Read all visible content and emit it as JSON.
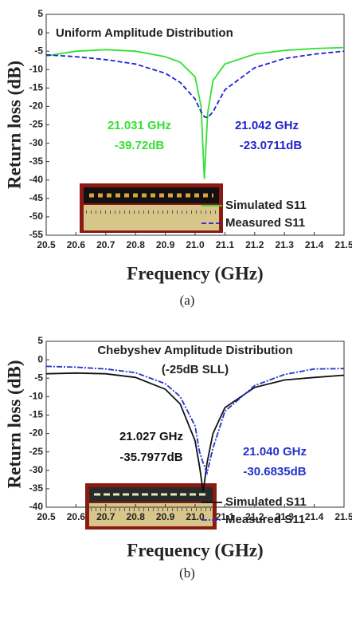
{
  "chart_data": [
    {
      "type": "line",
      "title": "Uniform Amplitude Distribution",
      "x_label": "Frequency (GHz)",
      "y_label": "Return loss (dB)",
      "caption": "(a)",
      "x": [
        20.5,
        20.6,
        20.7,
        20.8,
        20.9,
        20.95,
        21.0,
        21.02,
        21.031,
        21.042,
        21.06,
        21.1,
        21.2,
        21.3,
        21.4,
        21.5
      ],
      "series": [
        {
          "name": "Simulated S11",
          "color": "#33e033",
          "style": "solid",
          "values": [
            -6.3,
            -5,
            -4.6,
            -5,
            -6.5,
            -8,
            -12,
            -20,
            -39.72,
            -22,
            -13,
            -8.5,
            -5.8,
            -4.8,
            -4.3,
            -4
          ]
        },
        {
          "name": "Measured S11",
          "color": "#2222cc",
          "style": "dashed",
          "values": [
            -6,
            -6.5,
            -7.3,
            -8.5,
            -11,
            -13.5,
            -18,
            -21.5,
            -22.8,
            -23.0711,
            -21.5,
            -15.5,
            -9.5,
            -7,
            -5.8,
            -5
          ]
        }
      ],
      "annotations": [
        {
          "text": "21.031 GHz",
          "color": "#33e033"
        },
        {
          "text": "-39.72dB",
          "color": "#33e033"
        },
        {
          "text": "21.042 GHz",
          "color": "#2222cc"
        },
        {
          "text": "-23.0711dB",
          "color": "#2222cc"
        }
      ],
      "xlim": [
        20.5,
        21.5
      ],
      "xticks": [
        20.5,
        20.6,
        20.7,
        20.8,
        20.9,
        {
          "value": 21,
          "label": "21.0"
        },
        21.1,
        21.2,
        21.3,
        21.4,
        21.5
      ],
      "ylim": [
        -55,
        5
      ],
      "yticks": [
        -55,
        -50,
        -45,
        -40,
        -35,
        -30,
        -25,
        -20,
        -15,
        -10,
        -5,
        0,
        5
      ],
      "grid": false,
      "legend": "lower right"
    },
    {
      "type": "line",
      "title": "Chebyshev Amplitude Distribution",
      "subtitle": "(-25dB SLL)",
      "x_label": "Frequency (GHz)",
      "y_label": "Return loss (dB)",
      "caption": "(b)",
      "x": [
        20.5,
        20.6,
        20.7,
        20.8,
        20.9,
        20.95,
        21.0,
        21.015,
        21.027,
        21.04,
        21.06,
        21.1,
        21.2,
        21.3,
        21.4,
        21.5
      ],
      "series": [
        {
          "name": "Simulated S11",
          "color": "#111111",
          "style": "solid",
          "values": [
            -3.8,
            -3.6,
            -3.8,
            -4.8,
            -8,
            -12,
            -22,
            -29,
            -35.7977,
            -28,
            -20,
            -13,
            -7.5,
            -5.5,
            -4.8,
            -4.2
          ]
        },
        {
          "name": "Measured S11",
          "color": "#2233cc",
          "style": "dashdot",
          "values": [
            -1.8,
            -2,
            -2.5,
            -3.5,
            -6.5,
            -10,
            -18,
            -25,
            -28,
            -30.6835,
            -24,
            -14,
            -7,
            -4,
            -2.5,
            -2.4
          ]
        }
      ],
      "annotations": [
        {
          "text": "21.027 GHz",
          "color": "#111111"
        },
        {
          "text": "-35.7977dB",
          "color": "#111111"
        },
        {
          "text": "21.040 GHz",
          "color": "#2233cc"
        },
        {
          "text": "-30.6835dB",
          "color": "#2233cc"
        }
      ],
      "xlim": [
        20.5,
        21.5
      ],
      "xticks": [
        20.5,
        20.6,
        20.7,
        20.8,
        20.9,
        {
          "value": 21,
          "label": "21.0"
        },
        21.1,
        21.2,
        21.3,
        21.4,
        21.5
      ],
      "ylim": [
        -40,
        5
      ],
      "yticks": [
        -40,
        -35,
        -30,
        -25,
        -20,
        -15,
        -10,
        -5,
        0,
        5
      ],
      "grid": false,
      "legend": "lower right"
    }
  ]
}
